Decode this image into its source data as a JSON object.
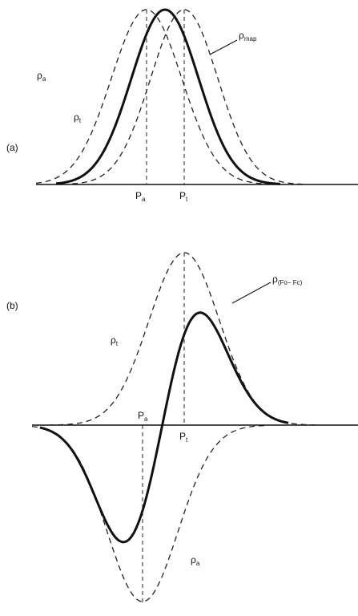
{
  "panel_a": {
    "tag": "(a)",
    "curve_labels": [
      {
        "symbol": "ρ",
        "subscript": "a"
      },
      {
        "symbol": "ρ",
        "subscript": "t"
      },
      {
        "symbol": "ρ",
        "subscript": "map"
      }
    ],
    "position_labels": [
      {
        "symbol": "P",
        "subscript": "a"
      },
      {
        "symbol": "P",
        "subscript": "t"
      }
    ]
  },
  "panel_b": {
    "tag": "(b)",
    "curve_labels": [
      {
        "symbol": "ρ",
        "subscript": "t"
      },
      {
        "symbol": "ρ",
        "subscript": "(Fo− Fc)"
      },
      {
        "symbol": "ρ",
        "subscript": "a"
      }
    ],
    "position_labels": [
      {
        "symbol": "P",
        "subscript": "a"
      },
      {
        "symbol": "P",
        "subscript": "t"
      }
    ]
  }
}
